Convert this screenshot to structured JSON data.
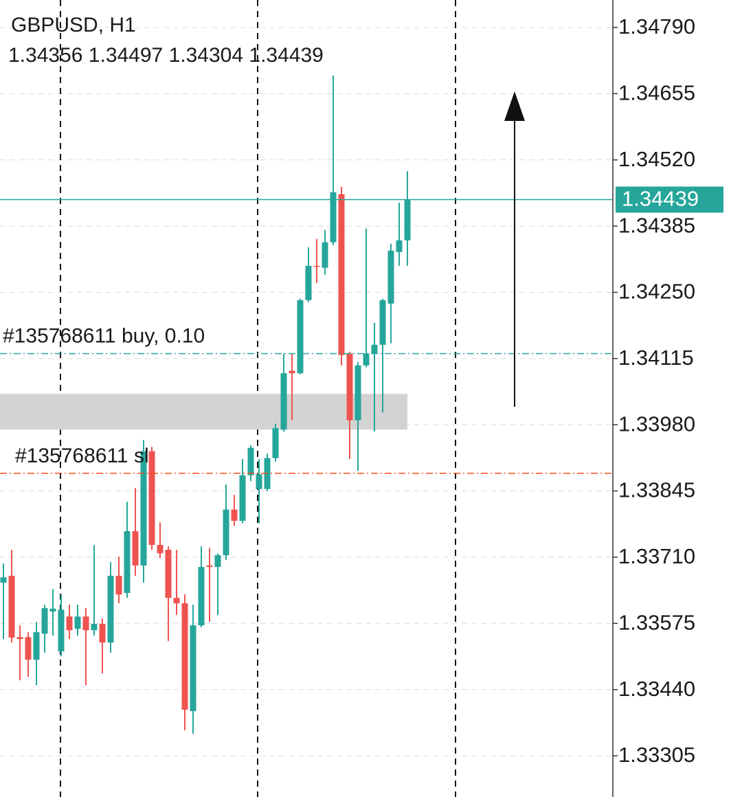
{
  "chart_data": {
    "type": "candlestick",
    "title": "GBPUSD, H1",
    "up_color": "#26a69a",
    "down_color": "#ef5350",
    "open": [
      1.33658,
      1.33672,
      1.33547,
      1.33547,
      1.33501,
      1.33554,
      1.33599,
      1.33518,
      1.33589,
      1.33564,
      1.33589,
      1.33561,
      1.33574,
      1.33536,
      1.33672,
      1.33637,
      1.33763,
      1.33693,
      1.33926,
      1.33735,
      1.33725,
      1.33627,
      1.33616,
      1.33396,
      1.33571,
      1.33693,
      1.3369,
      1.33714,
      1.33807,
      1.33784,
      1.33877,
      1.33849,
      1.33849,
      1.33912,
      1.3397,
      1.3409,
      1.34085,
      1.34234,
      1.34304,
      1.343,
      1.34352,
      1.3445,
      1.34125,
      1.33989,
      1.34101,
      1.34125,
      1.34143,
      1.34227,
      1.34332,
      1.34356
    ],
    "high": [
      1.33697,
      1.33725,
      1.33571,
      1.33557,
      1.33578,
      1.33613,
      1.33645,
      1.33634,
      1.33613,
      1.33613,
      1.33606,
      1.33735,
      1.33585,
      1.337,
      1.33711,
      1.33823,
      1.33851,
      1.33949,
      1.33935,
      1.33781,
      1.33732,
      1.33725,
      1.33634,
      1.33613,
      1.33732,
      1.33729,
      1.33718,
      1.33858,
      1.33837,
      1.3391,
      1.33938,
      1.3391,
      1.33921,
      1.33982,
      1.34125,
      1.34125,
      1.34237,
      1.34342,
      1.34359,
      1.34377,
      1.34692,
      1.34465,
      1.34129,
      1.34108,
      1.3438,
      1.34188,
      1.34237,
      1.34349,
      1.34433,
      1.34497
    ],
    "low": [
      1.33543,
      1.33536,
      1.33459,
      1.33466,
      1.33449,
      1.33515,
      1.3355,
      1.33508,
      1.33543,
      1.3355,
      1.33449,
      1.3355,
      1.33473,
      1.33515,
      1.33616,
      1.33627,
      1.33672,
      1.33658,
      1.33725,
      1.33708,
      1.33539,
      1.33592,
      1.33357,
      1.3335,
      1.33567,
      1.33578,
      1.33592,
      1.33704,
      1.33774,
      1.33779,
      1.33865,
      1.33779,
      1.33844,
      1.33905,
      1.33966,
      1.33989,
      1.34083,
      1.3423,
      1.34269,
      1.34286,
      1.34346,
      1.34101,
      1.3391,
      1.33886,
      1.34097,
      1.33966,
      1.34005,
      1.34146,
      1.34304,
      1.34304
    ],
    "close": [
      1.33669,
      1.33546,
      1.33543,
      1.33501,
      1.33557,
      1.33606,
      1.33605,
      1.33603,
      1.33561,
      1.33589,
      1.33561,
      1.33574,
      1.33536,
      1.33672,
      1.33634,
      1.33763,
      1.33693,
      1.33926,
      1.33735,
      1.33718,
      1.33627,
      1.33616,
      1.33399,
      1.33571,
      1.3369,
      1.3369,
      1.33714,
      1.33807,
      1.33784,
      1.33877,
      1.33933,
      1.33879,
      1.33912,
      1.33973,
      1.34085,
      1.34085,
      1.34234,
      1.34304,
      1.34303,
      1.34352,
      1.34454,
      1.34122,
      1.33989,
      1.34101,
      1.34125,
      1.34143,
      1.34234,
      1.34335,
      1.34356,
      1.34439
    ],
    "ylim": [
      1.33221,
      1.34846
    ],
    "yticks": [
      {
        "value": 1.3479,
        "label": "1.34790"
      },
      {
        "value": 1.34655,
        "label": "1.34655"
      },
      {
        "value": 1.3452,
        "label": "1.34520"
      },
      {
        "value": 1.34385,
        "label": "1.34385"
      },
      {
        "value": 1.3425,
        "label": "1.34250"
      },
      {
        "value": 1.34115,
        "label": "1.34115"
      },
      {
        "value": 1.3398,
        "label": "1.33980"
      },
      {
        "value": 1.33845,
        "label": "1.33845"
      },
      {
        "value": 1.3371,
        "label": "1.33710"
      },
      {
        "value": 1.33575,
        "label": "1.33575"
      },
      {
        "value": 1.3344,
        "label": "1.33440"
      },
      {
        "value": 1.33305,
        "label": "1.33305"
      }
    ],
    "grid": true,
    "orders": [
      {
        "label": "#135768611 buy, 0.10",
        "price": 1.34125,
        "color": "#26a69a"
      },
      {
        "label": "#135768611 sl",
        "price": 1.33881,
        "color": "#f4511e"
      }
    ],
    "zone": {
      "from": 1.3397,
      "to": 1.34043,
      "color": "#d3d3d3"
    }
  }
}
